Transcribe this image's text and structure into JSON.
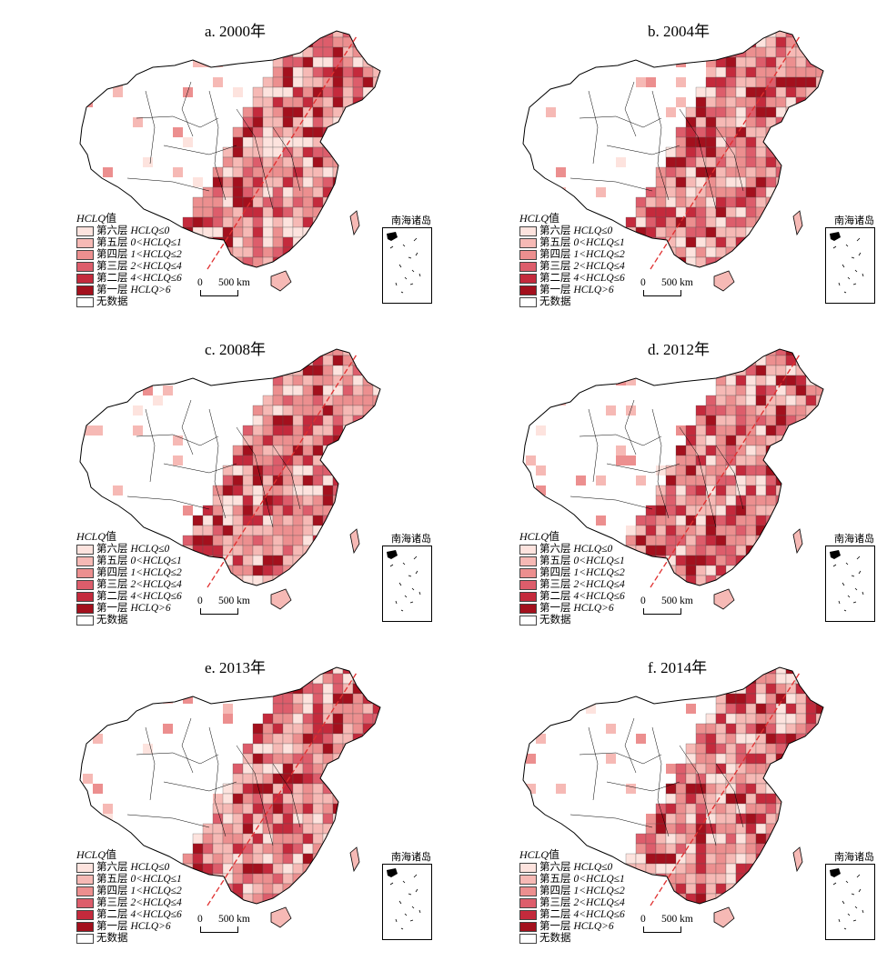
{
  "colors": {
    "level6": "#fde3de",
    "level5": "#f6b9b5",
    "level4": "#ec8f8f",
    "level3": "#dd5d6b",
    "level2": "#c42a3c",
    "level1": "#a3101d",
    "nodata": "#ffffff",
    "line": "#e03030",
    "border": "#000000"
  },
  "legend": {
    "title_var": "HCLQ",
    "title_suffix": "值",
    "items": [
      {
        "level": "第六层",
        "range": "HCLQ≤0",
        "color_key": "level6"
      },
      {
        "level": "第五层",
        "range": "0<HCLQ≤1",
        "color_key": "level5"
      },
      {
        "level": "第四层",
        "range": "1<HCLQ≤2",
        "color_key": "level4"
      },
      {
        "level": "第三层",
        "range": "2<HCLQ≤4",
        "color_key": "level3"
      },
      {
        "level": "第二层",
        "range": "4<HCLQ≤6",
        "color_key": "level2"
      },
      {
        "level": "第一层",
        "range": "HCLQ>6",
        "color_key": "level1"
      }
    ],
    "nodata_label": "无数据"
  },
  "scale": {
    "zero": "0",
    "label": "500 km"
  },
  "inset_label": "南海诸岛",
  "panels": [
    {
      "title": "a. 2000年"
    },
    {
      "title": "b. 2004年"
    },
    {
      "title": "c. 2008年"
    },
    {
      "title": "d. 2012年"
    },
    {
      "title": "e. 2013年"
    },
    {
      "title": "f. 2014年"
    }
  ]
}
